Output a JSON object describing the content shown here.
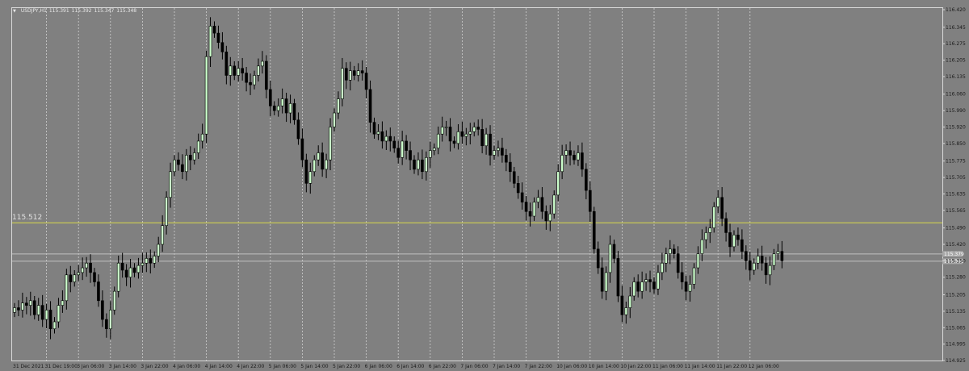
{
  "header": {
    "symbol_tf": "USDJPY,H1",
    "open": "115.391",
    "high": "115.392",
    "low": "115.347",
    "close": "115.348"
  },
  "hline": {
    "label": "115.512",
    "value": 115.512,
    "color": "#d8d84a"
  },
  "price_labels": [
    {
      "text": "115.379",
      "value": 115.379
    },
    {
      "text": "115.348",
      "value": 115.348
    }
  ],
  "colors": {
    "background": "#808080",
    "bull": "#ccffcc",
    "bear": "#000000",
    "grid": "#cfcfcf"
  },
  "chart_data": {
    "type": "candlestick",
    "symbol": "USDJPY",
    "timeframe": "H1",
    "ylim": [
      114.925,
      116.42
    ],
    "y_ticks": [
      116.42,
      116.345,
      116.275,
      116.205,
      116.135,
      116.06,
      115.99,
      115.92,
      115.85,
      115.775,
      115.705,
      115.635,
      115.565,
      115.49,
      115.42,
      115.35,
      115.28,
      115.205,
      115.135,
      115.065,
      114.995,
      114.925
    ],
    "x_ticks": [
      "31 Dec 2021",
      "31 Dec 19:00",
      "3 Jan 06:00",
      "3 Jan 14:00",
      "3 Jan 22:00",
      "4 Jan 06:00",
      "4 Jan 14:00",
      "4 Jan 22:00",
      "5 Jan 06:00",
      "5 Jan 14:00",
      "5 Jan 22:00",
      "6 Jan 06:00",
      "6 Jan 14:00",
      "6 Jan 22:00",
      "7 Jan 06:00",
      "7 Jan 14:00",
      "7 Jan 22:00",
      "10 Jan 06:00",
      "10 Jan 14:00",
      "10 Jan 22:00",
      "11 Jan 06:00",
      "11 Jan 14:00",
      "11 Jan 22:00",
      "12 Jan 06:00"
    ],
    "grid": true,
    "candles_per_tick": 8,
    "closes": [
      115.15,
      115.14,
      115.17,
      115.16,
      115.18,
      115.12,
      115.16,
      115.1,
      115.14,
      115.06,
      115.09,
      115.16,
      115.18,
      115.29,
      115.26,
      115.29,
      115.3,
      115.32,
      115.34,
      115.3,
      115.26,
      115.18,
      115.1,
      115.06,
      115.14,
      115.22,
      115.34,
      115.31,
      115.28,
      115.32,
      115.3,
      115.33,
      115.34,
      115.36,
      115.34,
      115.37,
      115.42,
      115.5,
      115.62,
      115.73,
      115.78,
      115.76,
      115.73,
      115.8,
      115.78,
      115.81,
      115.86,
      115.89,
      116.22,
      116.35,
      116.32,
      116.28,
      116.24,
      116.14,
      116.18,
      116.14,
      116.17,
      116.15,
      116.11,
      116.1,
      116.14,
      116.18,
      116.2,
      116.08,
      116.01,
      115.99,
      116.01,
      116.04,
      115.98,
      116.02,
      115.95,
      115.87,
      115.78,
      115.68,
      115.73,
      115.78,
      115.81,
      115.74,
      115.78,
      115.92,
      115.98,
      116.04,
      116.17,
      116.12,
      116.16,
      116.14,
      116.16,
      116.15,
      116.08,
      115.94,
      115.89,
      115.9,
      115.86,
      115.88,
      115.86,
      115.83,
      115.79,
      115.86,
      115.82,
      115.78,
      115.74,
      115.78,
      115.73,
      115.79,
      115.82,
      115.83,
      115.89,
      115.92,
      115.92,
      115.86,
      115.85,
      115.9,
      115.88,
      115.89,
      115.9,
      115.92,
      115.91,
      115.84,
      115.89,
      115.8,
      115.82,
      115.83,
      115.8,
      115.77,
      115.73,
      115.68,
      115.64,
      115.6,
      115.56,
      115.54,
      115.6,
      115.62,
      115.56,
      115.52,
      115.55,
      115.63,
      115.73,
      115.8,
      115.82,
      115.8,
      115.78,
      115.81,
      115.74,
      115.65,
      115.56,
      115.4,
      115.32,
      115.22,
      115.3,
      115.42,
      115.36,
      115.2,
      115.12,
      115.15,
      115.2,
      115.26,
      115.22,
      115.26,
      115.27,
      115.26,
      115.23,
      115.3,
      115.34,
      115.38,
      115.4,
      115.38,
      115.3,
      115.26,
      115.22,
      115.25,
      115.32,
      115.38,
      115.44,
      115.47,
      115.49,
      115.58,
      115.62,
      115.53,
      115.47,
      115.41,
      115.46,
      115.44,
      115.39,
      115.35,
      115.31,
      115.34,
      115.37,
      115.34,
      115.29,
      115.33,
      115.38,
      115.39,
      115.35
    ]
  }
}
